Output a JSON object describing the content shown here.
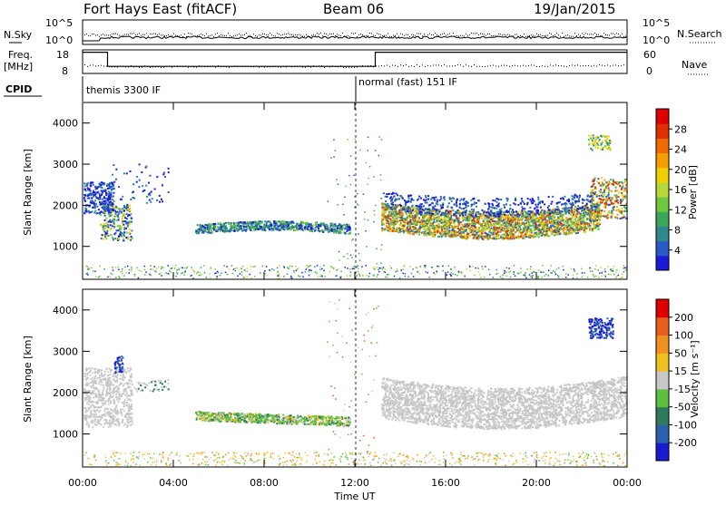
{
  "header": {
    "site": "Fort Hays East (fitACF)",
    "beam": "Beam 06",
    "date": "19/Jan/2015"
  },
  "strip": {
    "nsky_label": "N.Sky",
    "nsearch_label": "N.Search",
    "nsky_ticks": [
      "10^5",
      "10^0"
    ],
    "nsearch_ticks": [
      "10^5",
      "10^0"
    ],
    "freq_label_1": "Freq.",
    "freq_label_2": "[MHz]",
    "freq_ticks": [
      "18",
      "8"
    ],
    "nave_label": "Nave",
    "nave_ticks": [
      "60",
      "0"
    ],
    "cpid_label": "CPID",
    "cpid_1": "themis 3300 IF",
    "cpid_2": "normal (fast) 151 IF"
  },
  "chart_data": [
    {
      "type": "line",
      "title": "",
      "series": [
        {
          "name": "Freq.",
          "x_hours": [
            0.0,
            1.1,
            1.1,
            12.9,
            12.9,
            24.0
          ],
          "values": [
            17,
            17,
            11,
            11,
            17,
            17
          ]
        }
      ],
      "ylim": [
        8,
        18
      ],
      "cpid_segments": [
        {
          "start_hour": 0.0,
          "end_hour": 11.9,
          "label": "themis 3300 IF"
        },
        {
          "start_hour": 11.9,
          "end_hour": 24.0,
          "label": "normal (fast) 151 IF"
        }
      ]
    },
    {
      "type": "heatmap",
      "panel": "power",
      "xlabel": "",
      "ylabel": "Slant Range [km]",
      "xlim": [
        0,
        24
      ],
      "ylim": [
        200,
        4500
      ],
      "yticks": [
        "4000",
        "3000",
        "2000",
        "1000"
      ],
      "colorbar_label": "Power [dB]",
      "colorbar_ticks": [
        "28",
        "24",
        "20",
        "16",
        "12",
        "8",
        "4"
      ],
      "colorbar_colors": [
        "#1a1ad8",
        "#2a5ac8",
        "#2e8a8a",
        "#3aa85a",
        "#6ec83c",
        "#b8d83a",
        "#f0d000",
        "#f5a000",
        "#f06a00",
        "#e03000",
        "#e00000"
      ]
    },
    {
      "type": "heatmap",
      "panel": "velocity",
      "xlabel": "Time UT",
      "ylabel": "Slant Range [km]",
      "xlim": [
        0,
        24
      ],
      "ylim": [
        200,
        4500
      ],
      "xticks": [
        "00:00",
        "04:00",
        "08:00",
        "12:00",
        "16:00",
        "20:00",
        "00:00"
      ],
      "yticks": [
        "4000",
        "3000",
        "2000",
        "1000"
      ],
      "colorbar_label": "Velocity [m s⁻¹]",
      "colorbar_ticks": [
        "200",
        "100",
        "50",
        "15",
        "-15",
        "-50",
        "-100",
        "-200"
      ],
      "colorbar_colors": [
        "#1a1ad0",
        "#2a60b0",
        "#2e7a5a",
        "#5cc040",
        "#c8c8c8",
        "#f0c020",
        "#f09020",
        "#e86020",
        "#e00000"
      ]
    }
  ]
}
